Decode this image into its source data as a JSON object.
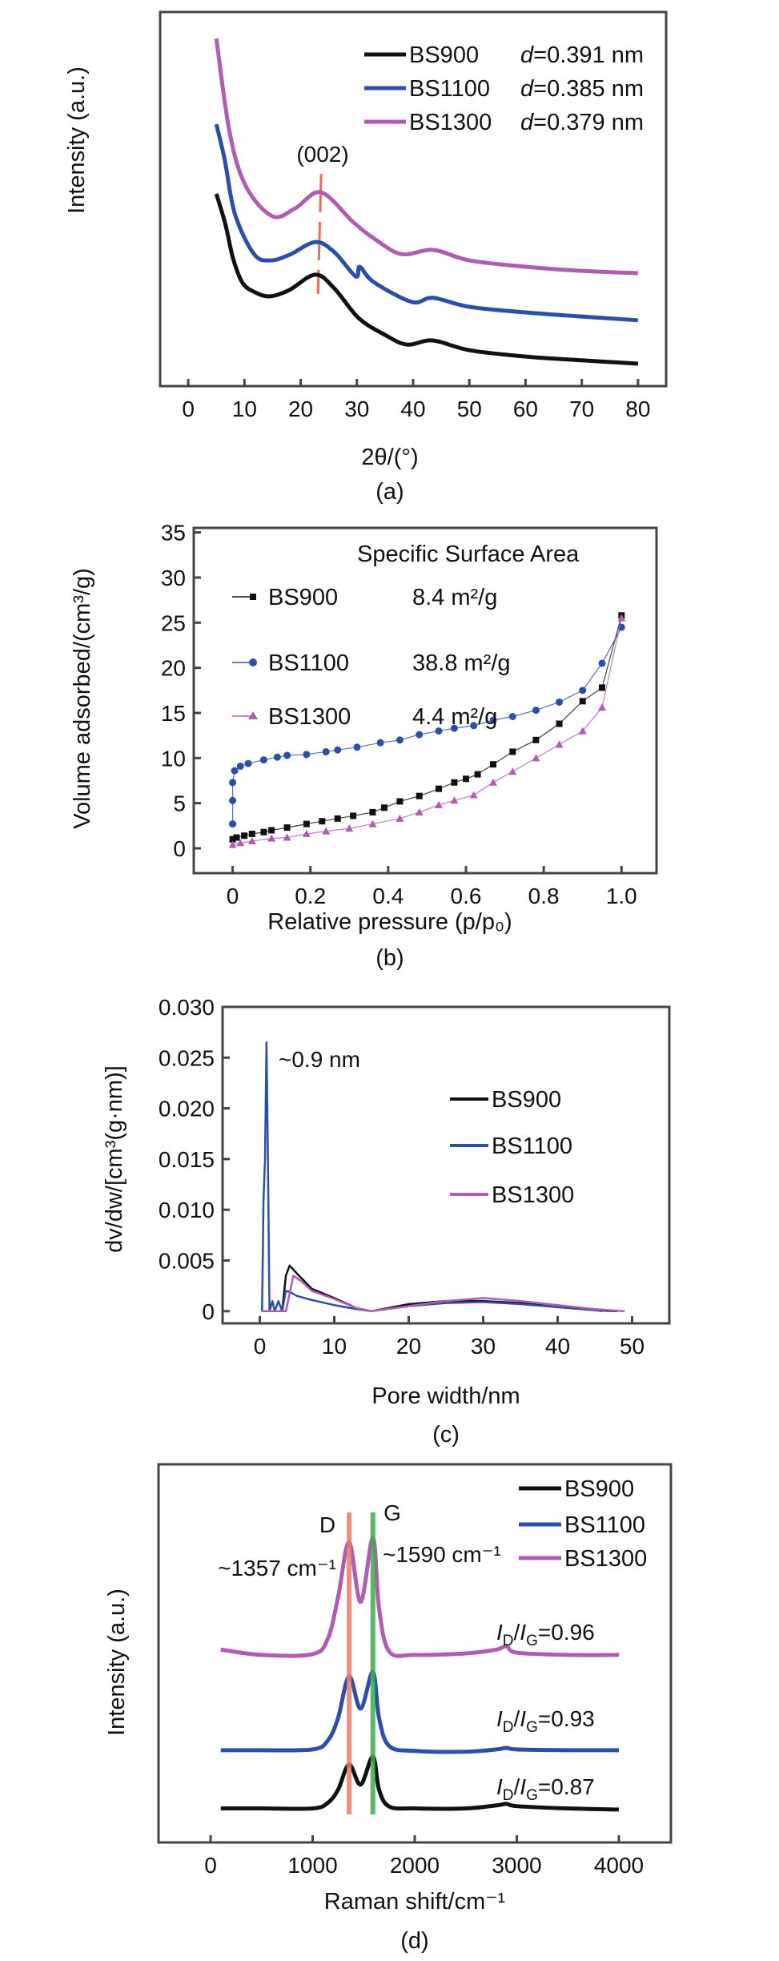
{
  "colors": {
    "BS900": "#111111",
    "BS1100": "#2b4ea6",
    "BS1300": "#b05cb0",
    "d_band": "#ef7b6b",
    "g_band": "#3cb04a",
    "marker_002": "#ef6b5b"
  },
  "chart_data": [
    {
      "panel": "(a)",
      "type": "line",
      "xlabel": "2θ/(°)",
      "ylabel": "Intensity (a.u.)",
      "xlim": [
        -5,
        85
      ],
      "ylim": [
        0,
        100
      ],
      "xtick_labels": [
        "0",
        "10",
        "20",
        "30",
        "40",
        "50",
        "60",
        "70",
        "80"
      ],
      "ytick_labels": [],
      "grid": false,
      "legend_placement": "top-right",
      "d_symbol": "d",
      "annotation_peak": "(002)",
      "peak_position": 23.5,
      "series": [
        {
          "name": "BS900",
          "d_value": "=0.391 nm",
          "points": [
            [
              5,
              51.4
            ],
            [
              6.6,
              43.3
            ],
            [
              8,
              34
            ],
            [
              9.7,
              27.5
            ],
            [
              12,
              25
            ],
            [
              14.6,
              24.0
            ],
            [
              18,
              25.7
            ],
            [
              22.6,
              29.8
            ],
            [
              26,
              26.1
            ],
            [
              30.3,
              18.2
            ],
            [
              35,
              13.7
            ],
            [
              38.9,
              11.1
            ],
            [
              43.5,
              12.2
            ],
            [
              50,
              9.6
            ],
            [
              60,
              7.9
            ],
            [
              70,
              6.9
            ],
            [
              80,
              6.0
            ]
          ]
        },
        {
          "name": "BS1100",
          "d_value": "=0.385 nm",
          "points": [
            [
              5,
              70
            ],
            [
              6.5,
              60.4
            ],
            [
              8.3,
              46
            ],
            [
              11.7,
              35.3
            ],
            [
              14.6,
              33.6
            ],
            [
              18,
              35.1
            ],
            [
              22.6,
              38.5
            ],
            [
              26,
              35.8
            ],
            [
              29.8,
              29.3
            ],
            [
              30.5,
              31.9
            ],
            [
              33,
              27.8
            ],
            [
              39.8,
              22.5
            ],
            [
              43.5,
              23.6
            ],
            [
              50,
              21.2
            ],
            [
              60,
              19.7
            ],
            [
              70,
              18.6
            ],
            [
              80,
              17.6
            ]
          ]
        },
        {
          "name": "BS1300",
          "d_value": "=0.379 nm",
          "points": [
            [
              5,
              92.9
            ],
            [
              7.4,
              67.5
            ],
            [
              10.3,
              53.3
            ],
            [
              15,
              45.4
            ],
            [
              19,
              47.5
            ],
            [
              23.6,
              51.8
            ],
            [
              29.3,
              43.9
            ],
            [
              33,
              39.5
            ],
            [
              37.9,
              35.3
            ],
            [
              43.6,
              36.4
            ],
            [
              50,
              33.6
            ],
            [
              60,
              31.9
            ],
            [
              70,
              30.8
            ],
            [
              80,
              30.2
            ]
          ]
        }
      ]
    },
    {
      "panel": "(b)",
      "type": "scatter",
      "xlabel": "Relative pressure (p/p₀)",
      "ylabel": "Volume adsorbed/(cm³/g)",
      "xlim": [
        -0.1,
        1.09
      ],
      "ylim": [
        -2.75,
        35.5
      ],
      "xtick_labels": [
        "0",
        "0.2",
        "0.4",
        "0.6",
        "0.8",
        "1.0"
      ],
      "ytick_labels": [
        "0",
        "5",
        "10",
        "15",
        "20",
        "25",
        "30",
        "35"
      ],
      "grid": false,
      "legend_placement": "top-left",
      "legend_title": "Specific Surface Area",
      "series": [
        {
          "name": "BS900",
          "marker": "square",
          "surface_area": "8.4 m²/g",
          "points": [
            [
              0,
              1.0
            ],
            [
              0.01,
              1.2
            ],
            [
              0.03,
              1.4
            ],
            [
              0.05,
              1.6
            ],
            [
              0.08,
              1.8
            ],
            [
              0.1,
              2.0
            ],
            [
              0.14,
              2.3
            ],
            [
              0.19,
              2.7
            ],
            [
              0.23,
              3.0
            ],
            [
              0.27,
              3.3
            ],
            [
              0.31,
              3.6
            ],
            [
              0.36,
              4.0
            ],
            [
              0.39,
              4.5
            ],
            [
              0.43,
              5.2
            ],
            [
              0.48,
              5.8
            ],
            [
              0.53,
              6.6
            ],
            [
              0.57,
              7.3
            ],
            [
              0.6,
              7.7
            ],
            [
              0.63,
              8.2
            ],
            [
              0.67,
              9.3
            ],
            [
              0.72,
              10.7
            ],
            [
              0.78,
              12.0
            ],
            [
              0.84,
              13.8
            ],
            [
              0.9,
              16.3
            ],
            [
              0.95,
              17.8
            ],
            [
              1.0,
              25.8
            ]
          ]
        },
        {
          "name": "BS1100",
          "marker": "circle",
          "surface_area": "38.8 m²/g",
          "points": [
            [
              0,
              2.7
            ],
            [
              0,
              5.3
            ],
            [
              0,
              7.3
            ],
            [
              0.005,
              8.6
            ],
            [
              0.02,
              9.1
            ],
            [
              0.04,
              9.4
            ],
            [
              0.08,
              9.8
            ],
            [
              0.115,
              10.1
            ],
            [
              0.14,
              10.3
            ],
            [
              0.19,
              10.4
            ],
            [
              0.24,
              10.7
            ],
            [
              0.27,
              10.9
            ],
            [
              0.32,
              11.2
            ],
            [
              0.38,
              11.7
            ],
            [
              0.43,
              12.0
            ],
            [
              0.48,
              12.6
            ],
            [
              0.53,
              13.0
            ],
            [
              0.57,
              13.3
            ],
            [
              0.62,
              13.6
            ],
            [
              0.67,
              14.2
            ],
            [
              0.72,
              14.6
            ],
            [
              0.78,
              15.3
            ],
            [
              0.84,
              16.2
            ],
            [
              0.9,
              17.5
            ],
            [
              0.95,
              20.5
            ],
            [
              1.0,
              24.5
            ]
          ]
        },
        {
          "name": "BS1300",
          "marker": "triangle",
          "surface_area": "4.4 m²/g",
          "points": [
            [
              0,
              0.4
            ],
            [
              0.02,
              0.6
            ],
            [
              0.05,
              0.8
            ],
            [
              0.1,
              1.1
            ],
            [
              0.14,
              1.2
            ],
            [
              0.19,
              1.6
            ],
            [
              0.24,
              1.9
            ],
            [
              0.3,
              2.2
            ],
            [
              0.36,
              2.7
            ],
            [
              0.43,
              3.3
            ],
            [
              0.48,
              4.0
            ],
            [
              0.53,
              4.8
            ],
            [
              0.57,
              5.3
            ],
            [
              0.62,
              5.9
            ],
            [
              0.67,
              7.3
            ],
            [
              0.72,
              8.5
            ],
            [
              0.78,
              10.0
            ],
            [
              0.84,
              11.5
            ],
            [
              0.9,
              13.0
            ],
            [
              0.95,
              15.6
            ],
            [
              1.0,
              25.5
            ]
          ]
        }
      ]
    },
    {
      "panel": "(c)",
      "type": "line",
      "xlabel": "Pore width/nm",
      "ylabel": "dv/dw/[cm³(g·nm)]",
      "xlim": [
        -5,
        55
      ],
      "ylim": [
        -0.0012,
        0.03
      ],
      "xtick_labels": [
        "0",
        "10",
        "20",
        "30",
        "40",
        "50"
      ],
      "ytick_labels": [
        "0",
        "0.005",
        "0.010",
        "0.015",
        "0.020",
        "0.025",
        "0.030"
      ],
      "grid": false,
      "legend_placement": "right",
      "annotation_peak": "~0.9 nm",
      "series": [
        {
          "name": "BS900",
          "points": [
            [
              0.3,
              0
            ],
            [
              3,
              0
            ],
            [
              3.5,
              0.0035
            ],
            [
              4,
              0.0045
            ],
            [
              5,
              0.0037
            ],
            [
              7,
              0.0022
            ],
            [
              10,
              0.0013
            ],
            [
              13,
              0.0003
            ],
            [
              15,
              0
            ],
            [
              20,
              0.0007
            ],
            [
              25,
              0.001
            ],
            [
              30,
              0.001
            ],
            [
              35,
              0.0008
            ],
            [
              40,
              0.0004
            ],
            [
              45,
              0.0001
            ],
            [
              48,
              0
            ]
          ]
        },
        {
          "name": "BS1100",
          "points": [
            [
              0.3,
              0
            ],
            [
              0.5,
              0.011
            ],
            [
              0.7,
              0.015
            ],
            [
              0.9,
              0.0265
            ],
            [
              1.1,
              0.0145
            ],
            [
              1.3,
              0
            ],
            [
              1.7,
              0.001
            ],
            [
              2.0,
              0
            ],
            [
              2.5,
              0.001
            ],
            [
              3.0,
              0
            ],
            [
              3.5,
              0.002
            ],
            [
              4,
              0.0019
            ],
            [
              5,
              0.0015
            ],
            [
              7,
              0.0011
            ],
            [
              10,
              0.0006
            ],
            [
              13,
              0.0002
            ],
            [
              15,
              0
            ],
            [
              20,
              0.0005
            ],
            [
              25,
              0.0008
            ],
            [
              30,
              0.0009
            ],
            [
              35,
              0.0007
            ],
            [
              40,
              0.0004
            ],
            [
              45,
              0.0001
            ],
            [
              46,
              0
            ]
          ]
        },
        {
          "name": "BS1300",
          "points": [
            [
              0.3,
              0
            ],
            [
              3.5,
              0
            ],
            [
              4.5,
              0.0035
            ],
            [
              5.5,
              0.003
            ],
            [
              7,
              0.002
            ],
            [
              10,
              0.0012
            ],
            [
              13,
              0.0003
            ],
            [
              15,
              0
            ],
            [
              20,
              0.0005
            ],
            [
              25,
              0.001
            ],
            [
              30,
              0.0013
            ],
            [
              35,
              0.001
            ],
            [
              40,
              0.0006
            ],
            [
              45,
              0.0002
            ],
            [
              49,
              0
            ]
          ]
        }
      ]
    },
    {
      "panel": "(d)",
      "type": "line",
      "xlabel": "Raman shift/cm⁻¹",
      "ylabel": "Intensity (a.u.)",
      "xlim": [
        -510,
        4510
      ],
      "ylim": [
        0,
        100
      ],
      "xtick_labels": [
        "0",
        "1000",
        "2000",
        "3000",
        "4000"
      ],
      "ytick_labels": [],
      "grid": false,
      "legend_placement": "top-right",
      "band_d": {
        "label": "D",
        "position": 1357,
        "annotation": "~1357 cm⁻¹"
      },
      "band_g": {
        "label": "G",
        "position": 1590,
        "annotation": "~1590 cm⁻¹"
      },
      "ratio_symbol": {
        "i1": "I",
        "d": "D",
        "slash": "/",
        "i2": "I",
        "g": "G"
      },
      "series": [
        {
          "name": "BS900",
          "ratio": "=0.87",
          "points": [
            [
              100,
              9
            ],
            [
              500,
              9
            ],
            [
              1000,
              9
            ],
            [
              1150,
              10.5
            ],
            [
              1250,
              14
            ],
            [
              1357,
              20.6
            ],
            [
              1470,
              15.3
            ],
            [
              1590,
              22.7
            ],
            [
              1650,
              14
            ],
            [
              1750,
              9.5
            ],
            [
              2000,
              9
            ],
            [
              2500,
              9
            ],
            [
              2800,
              9.8
            ],
            [
              2900,
              10.2
            ],
            [
              3000,
              9.6
            ],
            [
              3500,
              9
            ],
            [
              4000,
              8.7
            ]
          ]
        },
        {
          "name": "BS1100",
          "ratio": "=0.93",
          "points": [
            [
              100,
              24.4
            ],
            [
              500,
              24.4
            ],
            [
              1000,
              24.6
            ],
            [
              1150,
              27
            ],
            [
              1250,
              33
            ],
            [
              1357,
              43.9
            ],
            [
              1470,
              35.4
            ],
            [
              1590,
              45.1
            ],
            [
              1650,
              33
            ],
            [
              1750,
              25.5
            ],
            [
              2000,
              24.2
            ],
            [
              2500,
              24
            ],
            [
              2800,
              24.6
            ],
            [
              2900,
              25
            ],
            [
              3000,
              24.6
            ],
            [
              3500,
              24.4
            ],
            [
              4000,
              24.4
            ]
          ]
        },
        {
          "name": "BS1300",
          "ratio": "=0.96",
          "points": [
            [
              100,
              51
            ],
            [
              500,
              49.6
            ],
            [
              1000,
              49.8
            ],
            [
              1150,
              54
            ],
            [
              1250,
              65
            ],
            [
              1357,
              79.4
            ],
            [
              1470,
              63.6
            ],
            [
              1590,
              80.5
            ],
            [
              1650,
              62
            ],
            [
              1750,
              50.5
            ],
            [
              2000,
              49.6
            ],
            [
              2500,
              50
            ],
            [
              2800,
              51
            ],
            [
              2900,
              51.9
            ],
            [
              3000,
              50.2
            ],
            [
              3500,
              49.6
            ],
            [
              4000,
              49.6
            ]
          ]
        }
      ]
    }
  ]
}
